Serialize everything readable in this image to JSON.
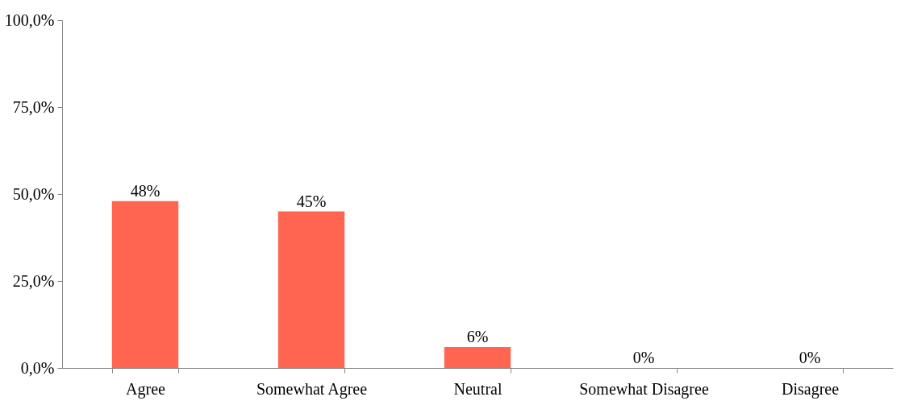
{
  "chart_data": {
    "type": "bar",
    "categories": [
      "Agree",
      "Somewhat Agree",
      "Neutral",
      "Somewhat Disagree",
      "Disagree"
    ],
    "values": [
      48,
      45,
      6,
      0,
      0
    ],
    "value_labels": [
      "48%",
      "45%",
      "6%",
      "0%",
      "0%"
    ],
    "color": "#ff6550",
    "ylim": [
      0,
      100
    ],
    "yticks": [
      {
        "value": 0,
        "label": "0,0%"
      },
      {
        "value": 25,
        "label": "25,0%"
      },
      {
        "value": 50,
        "label": "50,0%"
      },
      {
        "value": 75,
        "label": "75,0%"
      },
      {
        "value": 100,
        "label": "100,0%"
      }
    ],
    "grid": false
  }
}
